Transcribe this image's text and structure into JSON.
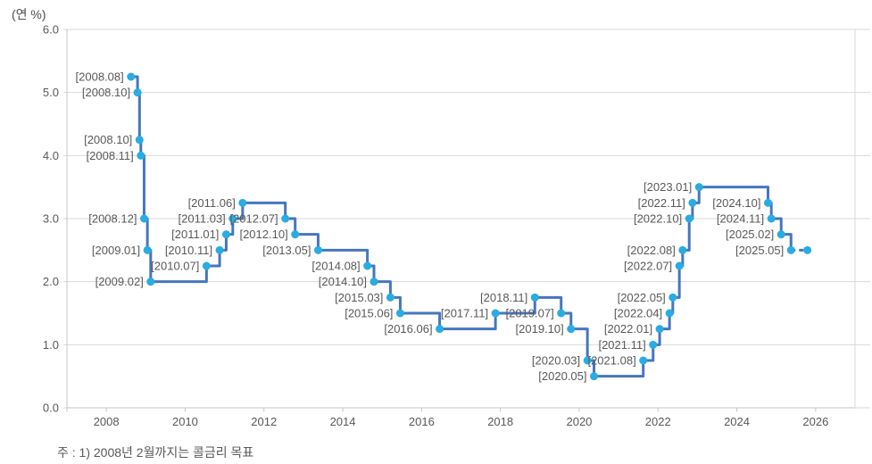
{
  "chart_data": {
    "type": "line",
    "subtype": "step",
    "title": "(연 %)",
    "note": "주 : 1) 2008년 2월까지는 콜금리 목표",
    "grid": "horizontal",
    "legend": "none",
    "ylim": [
      0.0,
      6.0
    ],
    "yticks": [
      {
        "value": 6.0,
        "label": "6.0"
      },
      {
        "value": 5.0,
        "label": "5.0"
      },
      {
        "value": 4.0,
        "label": "4.0"
      },
      {
        "value": 3.0,
        "label": "3.0"
      },
      {
        "value": 2.0,
        "label": "2.0"
      },
      {
        "value": 1.0,
        "label": "1.0"
      },
      {
        "value": 0.0,
        "label": "0.0"
      }
    ],
    "xlim": [
      2007,
      2027
    ],
    "xticks": [
      2008,
      2010,
      2012,
      2014,
      2016,
      2018,
      2020,
      2022,
      2024,
      2026
    ],
    "colors": {
      "line": "#4676be",
      "marker": "#29ace3",
      "grid": "#d9d9d9",
      "axis": "#c6c6c6",
      "point_label": "#595959",
      "tick_label": "#595959"
    },
    "points": [
      {
        "label": "[2008.08]",
        "year": 2008,
        "month": 8,
        "value": 5.25
      },
      {
        "label": "[2008.10]",
        "year": 2008,
        "month": 10,
        "value": 5.0
      },
      {
        "label": "[2008.10]",
        "year": 2008,
        "month": 10,
        "value": 4.25
      },
      {
        "label": "[2008.11]",
        "year": 2008,
        "month": 11,
        "value": 4.0
      },
      {
        "label": "[2008.12]",
        "year": 2008,
        "month": 12,
        "value": 3.0
      },
      {
        "label": "[2009.01]",
        "year": 2009,
        "month": 1,
        "value": 2.5
      },
      {
        "label": "[2009.02]",
        "year": 2009,
        "month": 2,
        "value": 2.0
      },
      {
        "label": "[2010.07]",
        "year": 2010,
        "month": 7,
        "value": 2.25
      },
      {
        "label": "[2010.11]",
        "year": 2010,
        "month": 11,
        "value": 2.5
      },
      {
        "label": "[2011.01]",
        "year": 2011,
        "month": 1,
        "value": 2.75
      },
      {
        "label": "[2011.03]",
        "year": 2011,
        "month": 3,
        "value": 3.0
      },
      {
        "label": "[2011.06]",
        "year": 2011,
        "month": 6,
        "value": 3.25
      },
      {
        "label": "[2012.07]",
        "year": 2012,
        "month": 7,
        "value": 3.0
      },
      {
        "label": "[2012.10]",
        "year": 2012,
        "month": 10,
        "value": 2.75
      },
      {
        "label": "[2013.05]",
        "year": 2013,
        "month": 5,
        "value": 2.5
      },
      {
        "label": "[2014.08]",
        "year": 2014,
        "month": 8,
        "value": 2.25
      },
      {
        "label": "[2014.10]",
        "year": 2014,
        "month": 10,
        "value": 2.0
      },
      {
        "label": "[2015.03]",
        "year": 2015,
        "month": 3,
        "value": 1.75
      },
      {
        "label": "[2015.06]",
        "year": 2015,
        "month": 6,
        "value": 1.5
      },
      {
        "label": "[2016.06]",
        "year": 2016,
        "month": 6,
        "value": 1.25
      },
      {
        "label": "[2017.11]",
        "year": 2017,
        "month": 11,
        "value": 1.5
      },
      {
        "label": "[2018.11]",
        "year": 2018,
        "month": 11,
        "value": 1.75
      },
      {
        "label": "[2019.07]",
        "year": 2019,
        "month": 7,
        "value": 1.5
      },
      {
        "label": "[2019.10]",
        "year": 2019,
        "month": 10,
        "value": 1.25
      },
      {
        "label": "[2020.03]",
        "year": 2020,
        "month": 3,
        "value": 0.75
      },
      {
        "label": "[2020.05]",
        "year": 2020,
        "month": 5,
        "value": 0.5
      },
      {
        "label": "[2021.08]",
        "year": 2021,
        "month": 8,
        "value": 0.75
      },
      {
        "label": "[2021.11]",
        "year": 2021,
        "month": 11,
        "value": 1.0
      },
      {
        "label": "[2022.01]",
        "year": 2022,
        "month": 1,
        "value": 1.25
      },
      {
        "label": "[2022.04]",
        "year": 2022,
        "month": 4,
        "value": 1.5
      },
      {
        "label": "[2022.05]",
        "year": 2022,
        "month": 5,
        "value": 1.75
      },
      {
        "label": "[2022.07]",
        "year": 2022,
        "month": 7,
        "value": 2.25
      },
      {
        "label": "[2022.08]",
        "year": 2022,
        "month": 8,
        "value": 2.5
      },
      {
        "label": "[2022.10]",
        "year": 2022,
        "month": 10,
        "value": 3.0
      },
      {
        "label": "[2022.11]",
        "year": 2022,
        "month": 11,
        "value": 3.25
      },
      {
        "label": "[2023.01]",
        "year": 2023,
        "month": 1,
        "value": 3.5
      },
      {
        "label": "[2024.10]",
        "year": 2024,
        "month": 10,
        "value": 3.25
      },
      {
        "label": "[2024.11]",
        "year": 2024,
        "month": 11,
        "value": 3.0
      },
      {
        "label": "[2025.02]",
        "year": 2025,
        "month": 2,
        "value": 2.75
      },
      {
        "label": "[2025.05]",
        "year": 2025,
        "month": 5,
        "value": 2.5
      }
    ],
    "extension": {
      "label": "",
      "year": 2025,
      "month": 10,
      "value": 2.5,
      "dashed": true
    }
  }
}
